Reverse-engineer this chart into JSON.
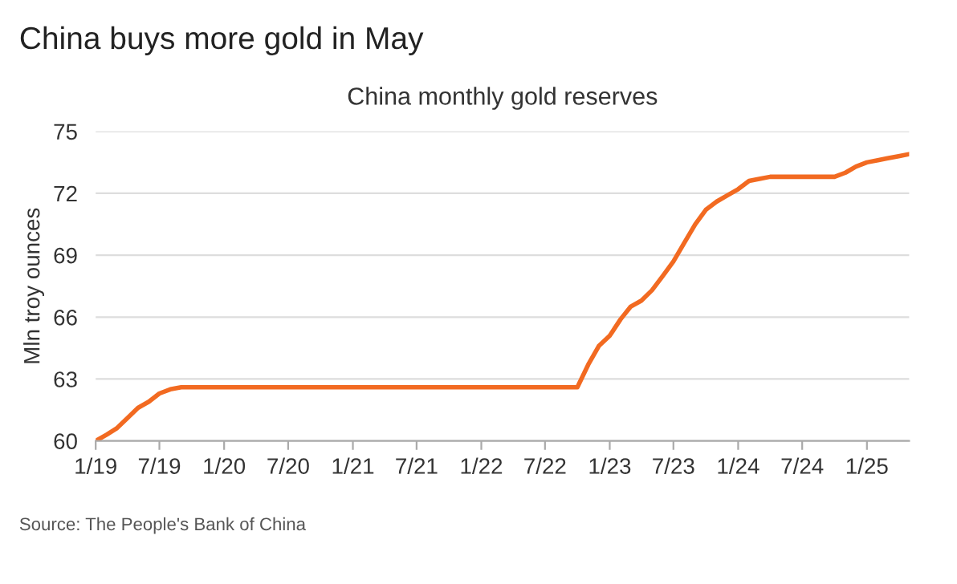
{
  "chart_data": {
    "type": "line",
    "title": "China buys more gold in May",
    "subtitle": "China monthly gold reserves",
    "ylabel": "Mln troy ounces",
    "x": [
      "2019-01",
      "2019-02",
      "2019-03",
      "2019-04",
      "2019-05",
      "2019-06",
      "2019-07",
      "2019-08",
      "2019-09",
      "2019-10",
      "2019-11",
      "2019-12",
      "2020-01",
      "2020-02",
      "2020-03",
      "2020-04",
      "2020-05",
      "2020-06",
      "2020-07",
      "2020-08",
      "2020-09",
      "2020-10",
      "2020-11",
      "2020-12",
      "2021-01",
      "2021-02",
      "2021-03",
      "2021-04",
      "2021-05",
      "2021-06",
      "2021-07",
      "2021-08",
      "2021-09",
      "2021-10",
      "2021-11",
      "2021-12",
      "2022-01",
      "2022-02",
      "2022-03",
      "2022-04",
      "2022-05",
      "2022-06",
      "2022-07",
      "2022-08",
      "2022-09",
      "2022-10",
      "2022-11",
      "2022-12",
      "2023-01",
      "2023-02",
      "2023-03",
      "2023-04",
      "2023-05",
      "2023-06",
      "2023-07",
      "2023-08",
      "2023-09",
      "2023-10",
      "2023-11",
      "2023-12",
      "2024-01",
      "2024-02",
      "2024-03",
      "2024-04",
      "2024-05",
      "2024-06",
      "2024-07",
      "2024-08",
      "2024-09",
      "2024-10",
      "2024-11",
      "2024-12",
      "2025-01",
      "2025-02",
      "2025-03",
      "2025-04",
      "2025-05"
    ],
    "series": [
      {
        "color": "#f26a21",
        "values": [
          60.0,
          60.3,
          60.6,
          61.1,
          61.6,
          61.9,
          62.3,
          62.5,
          62.6,
          62.6,
          62.6,
          62.6,
          62.6,
          62.6,
          62.6,
          62.6,
          62.6,
          62.6,
          62.6,
          62.6,
          62.6,
          62.6,
          62.6,
          62.6,
          62.6,
          62.6,
          62.6,
          62.6,
          62.6,
          62.6,
          62.6,
          62.6,
          62.6,
          62.6,
          62.6,
          62.6,
          62.6,
          62.6,
          62.6,
          62.6,
          62.6,
          62.6,
          62.6,
          62.6,
          62.6,
          62.6,
          63.7,
          64.6,
          65.1,
          65.9,
          66.5,
          66.8,
          67.3,
          68.0,
          68.7,
          69.6,
          70.5,
          71.2,
          71.6,
          71.9,
          72.2,
          72.6,
          72.7,
          72.8,
          72.8,
          72.8,
          72.8,
          72.8,
          72.8,
          72.8,
          73.0,
          73.3,
          73.5,
          73.6,
          73.7,
          73.8,
          73.9
        ]
      }
    ],
    "xlim": [
      "2019-01",
      "2025-05"
    ],
    "ylim": [
      60,
      75
    ],
    "yticks": [
      60,
      63,
      66,
      69,
      72,
      75
    ],
    "xticks": [
      {
        "value": "2019-01",
        "label": "1/19"
      },
      {
        "value": "2019-07",
        "label": "7/19"
      },
      {
        "value": "2020-01",
        "label": "1/20"
      },
      {
        "value": "2020-07",
        "label": "7/20"
      },
      {
        "value": "2021-01",
        "label": "1/21"
      },
      {
        "value": "2021-07",
        "label": "7/21"
      },
      {
        "value": "2022-01",
        "label": "1/22"
      },
      {
        "value": "2022-07",
        "label": "7/22"
      },
      {
        "value": "2023-01",
        "label": "1/23"
      },
      {
        "value": "2023-07",
        "label": "7/23"
      },
      {
        "value": "2024-01",
        "label": "1/24"
      },
      {
        "value": "2024-07",
        "label": "7/24"
      },
      {
        "value": "2025-01",
        "label": "1/25"
      }
    ],
    "grid": "y",
    "legend": false,
    "marker": "none",
    "line_style": "solid",
    "annotations": [
      "Source: The People's Bank of China"
    ]
  }
}
